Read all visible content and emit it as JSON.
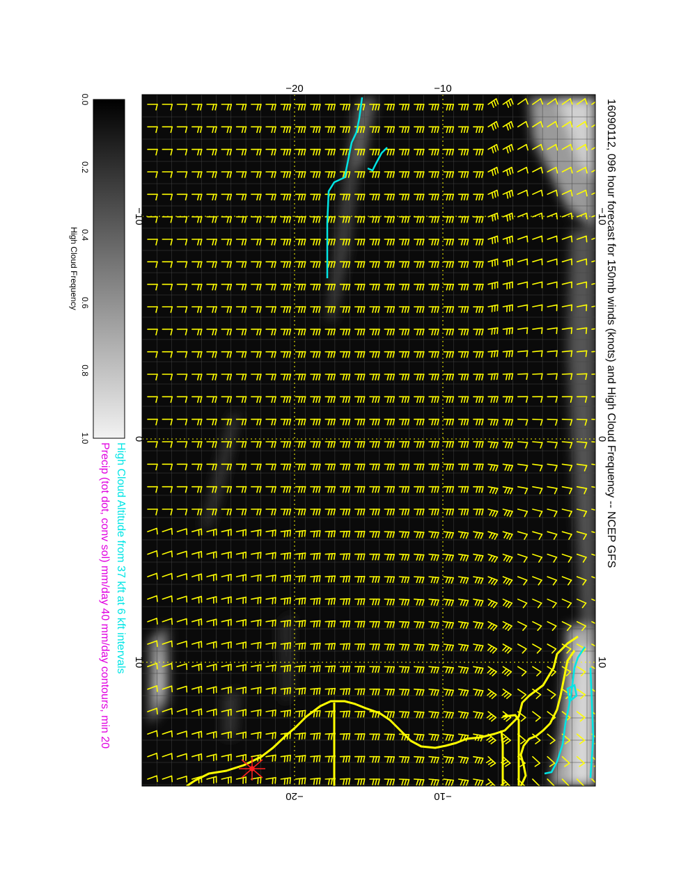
{
  "title": "16090112, 096 hour forecast for 150mb winds (knots) and High Cloud Frequency -- NCEP GFS",
  "caption_line1": "High Cloud Altitude from 37 kft at 6 kft intervals",
  "caption_line2": "Precip (tot dot, conv sol) mm/day 40 mm/day contours, min 20",
  "colorbar": {
    "label": "High Cloud Frequency",
    "ticks": [
      "0.0",
      "0.2",
      "0.4",
      "0.6",
      "0.8",
      "1.0"
    ]
  },
  "axes": {
    "top_ticks": [
      "−20",
      "−10"
    ],
    "bottom_ticks": [
      "−20",
      "−10"
    ],
    "left_ticks": [
      "−10",
      "0",
      "10"
    ],
    "right_ticks": [
      "−10",
      "0",
      "10"
    ]
  },
  "colors": {
    "background": "#0a0a0a",
    "barbs": "#ffff00",
    "coast": "#ffff00",
    "cloud_altitude": "#00e5e5",
    "precip_caption": "#e000e0",
    "cloud_caption": "#00e5e5",
    "grid": "#ffff00",
    "marker": "#ff2020"
  },
  "icons": {
    "station_marker": "red-star-icon"
  }
}
